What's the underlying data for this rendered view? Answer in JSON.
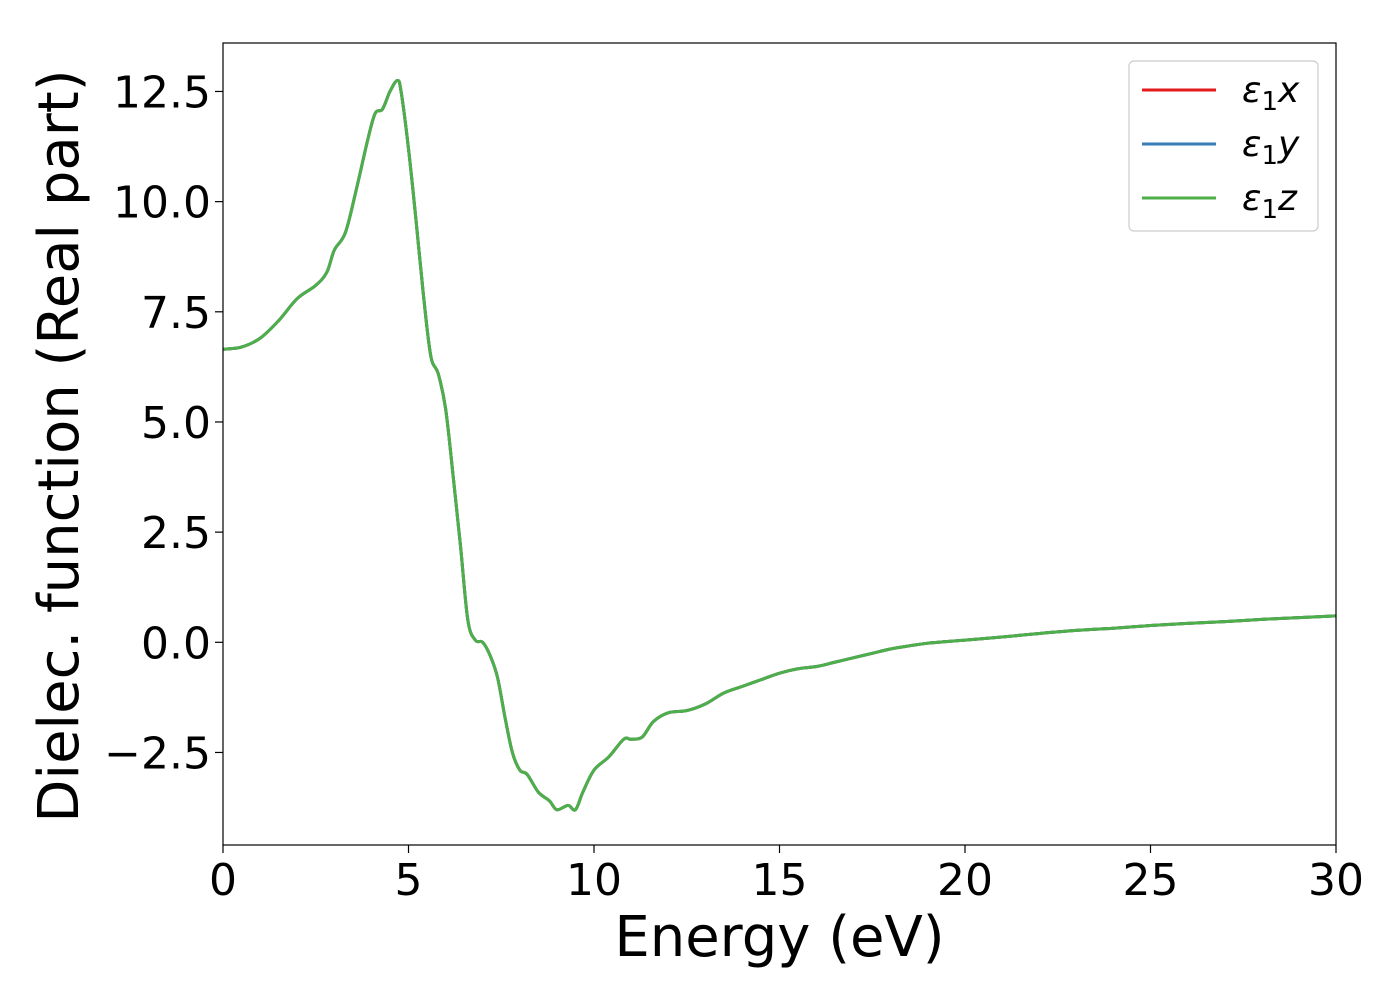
{
  "chart_data": {
    "type": "line",
    "title": "",
    "xlabel": "Energy (eV)",
    "ylabel": "Dielec. function (Real part)",
    "xlim": [
      0,
      30
    ],
    "ylim": [
      -4.6,
      13.6
    ],
    "xticks": [
      0,
      5,
      10,
      15,
      20,
      25,
      30
    ],
    "yticks": [
      -2.5,
      0.0,
      2.5,
      5.0,
      7.5,
      10.0,
      12.5
    ],
    "xtick_labels": [
      "0",
      "5",
      "10",
      "15",
      "20",
      "25",
      "30"
    ],
    "ytick_labels": [
      "−2.5",
      "0.0",
      "2.5",
      "5.0",
      "7.5",
      "10.0",
      "12.5"
    ],
    "grid": false,
    "legend_position": "top-right",
    "legend": [
      {
        "base": "ε",
        "sub": "1",
        "suffix": "x",
        "color": "#e41a1c"
      },
      {
        "base": "ε",
        "sub": "1",
        "suffix": "y",
        "color": "#377eb8"
      },
      {
        "base": "ε",
        "sub": "1",
        "suffix": "z",
        "color": "#4daf4a"
      }
    ],
    "x": [
      0,
      0.5,
      1,
      1.5,
      2,
      2.5,
      2.8,
      3,
      3.3,
      3.6,
      3.9,
      4.1,
      4.3,
      4.5,
      4.7,
      4.8,
      5.0,
      5.2,
      5.4,
      5.6,
      5.8,
      6.0,
      6.2,
      6.4,
      6.6,
      6.8,
      7.0,
      7.2,
      7.4,
      7.6,
      7.8,
      8.0,
      8.2,
      8.5,
      8.8,
      9.0,
      9.3,
      9.5,
      9.7,
      10.0,
      10.4,
      10.8,
      11.0,
      11.3,
      11.6,
      12.0,
      12.5,
      13.0,
      13.5,
      14.0,
      14.5,
      15.0,
      15.5,
      16.0,
      16.5,
      17.0,
      17.5,
      18.0,
      18.5,
      19.0,
      20.0,
      21.0,
      22.0,
      23.0,
      24.0,
      25.0,
      26.0,
      27.0,
      28.0,
      29.0,
      30.0
    ],
    "series": [
      {
        "name": "ε1x",
        "color": "#e41a1c",
        "values": [
          6.65,
          6.7,
          6.9,
          7.3,
          7.8,
          8.1,
          8.4,
          8.9,
          9.3,
          10.3,
          11.4,
          12.0,
          12.1,
          12.5,
          12.75,
          12.5,
          11.2,
          9.6,
          7.9,
          6.5,
          6.1,
          5.3,
          3.8,
          2.2,
          0.5,
          0.05,
          0.0,
          -0.3,
          -0.8,
          -1.7,
          -2.5,
          -2.9,
          -3.0,
          -3.4,
          -3.6,
          -3.8,
          -3.7,
          -3.8,
          -3.4,
          -2.9,
          -2.6,
          -2.2,
          -2.2,
          -2.15,
          -1.8,
          -1.6,
          -1.55,
          -1.4,
          -1.15,
          -1.0,
          -0.85,
          -0.7,
          -0.6,
          -0.55,
          -0.45,
          -0.35,
          -0.25,
          -0.15,
          -0.08,
          -0.02,
          0.05,
          0.12,
          0.2,
          0.27,
          0.32,
          0.38,
          0.43,
          0.47,
          0.52,
          0.56,
          0.6
        ]
      },
      {
        "name": "ε1y",
        "color": "#377eb8",
        "values": [
          6.65,
          6.7,
          6.9,
          7.3,
          7.8,
          8.1,
          8.4,
          8.9,
          9.3,
          10.3,
          11.4,
          12.0,
          12.1,
          12.5,
          12.75,
          12.5,
          11.2,
          9.6,
          7.9,
          6.5,
          6.1,
          5.3,
          3.8,
          2.2,
          0.5,
          0.05,
          0.0,
          -0.3,
          -0.8,
          -1.7,
          -2.5,
          -2.9,
          -3.0,
          -3.4,
          -3.6,
          -3.8,
          -3.7,
          -3.8,
          -3.4,
          -2.9,
          -2.6,
          -2.2,
          -2.2,
          -2.15,
          -1.8,
          -1.6,
          -1.55,
          -1.4,
          -1.15,
          -1.0,
          -0.85,
          -0.7,
          -0.6,
          -0.55,
          -0.45,
          -0.35,
          -0.25,
          -0.15,
          -0.08,
          -0.02,
          0.05,
          0.12,
          0.2,
          0.27,
          0.32,
          0.38,
          0.43,
          0.47,
          0.52,
          0.56,
          0.6
        ]
      },
      {
        "name": "ε1z",
        "color": "#4daf4a",
        "values": [
          6.65,
          6.7,
          6.9,
          7.3,
          7.8,
          8.1,
          8.4,
          8.9,
          9.3,
          10.3,
          11.4,
          12.0,
          12.1,
          12.5,
          12.75,
          12.5,
          11.2,
          9.6,
          7.9,
          6.5,
          6.1,
          5.3,
          3.8,
          2.2,
          0.5,
          0.05,
          0.0,
          -0.3,
          -0.8,
          -1.7,
          -2.5,
          -2.9,
          -3.0,
          -3.4,
          -3.6,
          -3.8,
          -3.7,
          -3.8,
          -3.4,
          -2.9,
          -2.6,
          -2.2,
          -2.2,
          -2.15,
          -1.8,
          -1.6,
          -1.55,
          -1.4,
          -1.15,
          -1.0,
          -0.85,
          -0.7,
          -0.6,
          -0.55,
          -0.45,
          -0.35,
          -0.25,
          -0.15,
          -0.08,
          -0.02,
          0.05,
          0.12,
          0.2,
          0.27,
          0.32,
          0.38,
          0.43,
          0.47,
          0.52,
          0.56,
          0.6
        ]
      }
    ]
  }
}
